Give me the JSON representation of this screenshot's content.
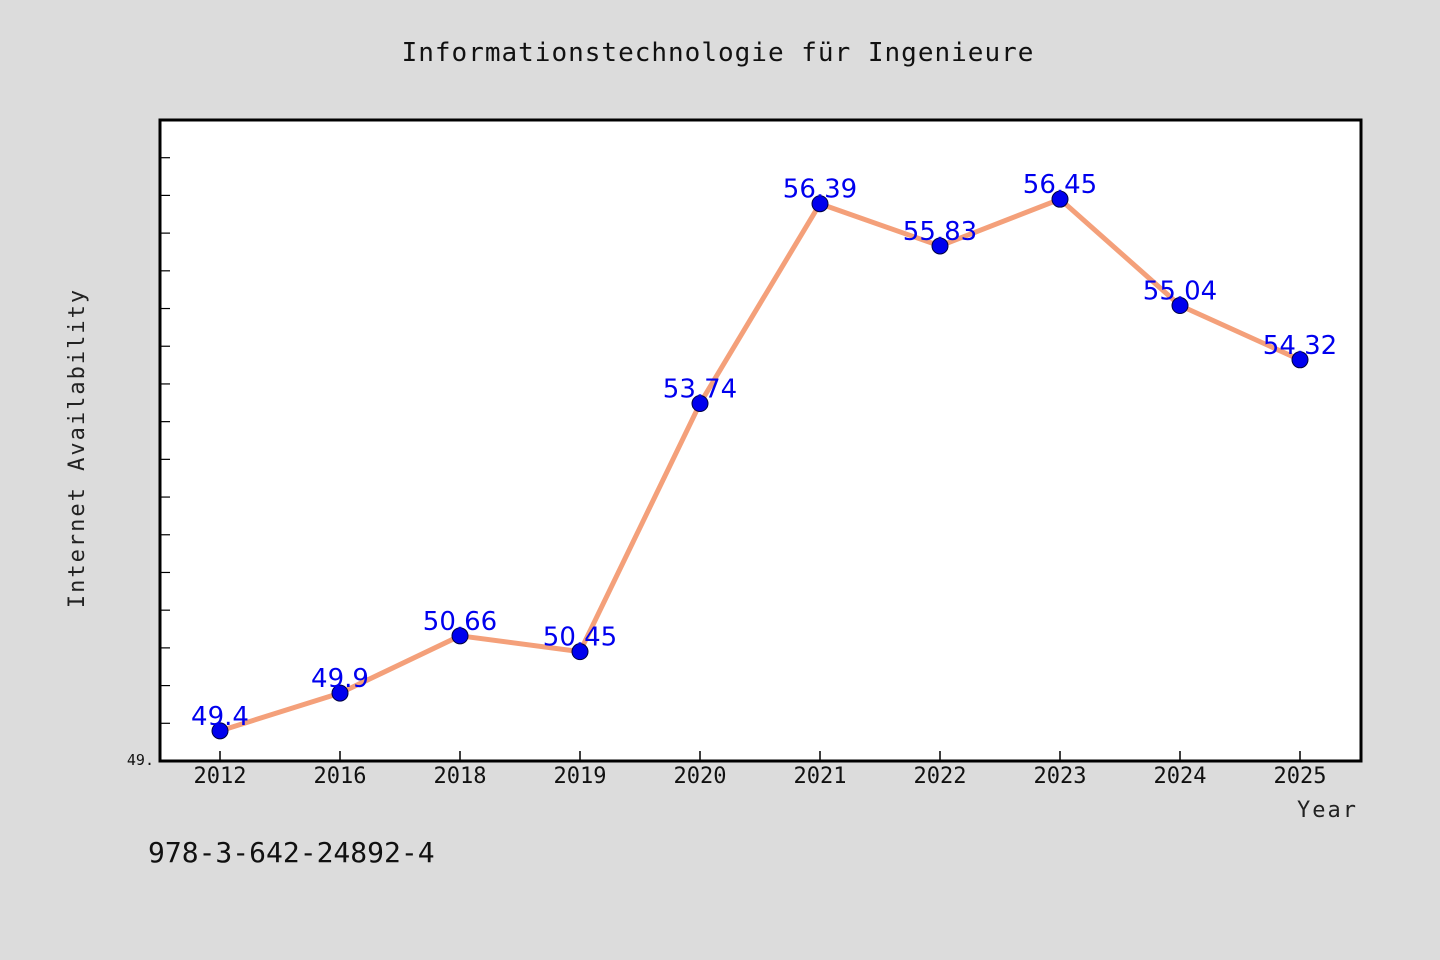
{
  "footer_text": "978-3-642-24892-4",
  "chart_data": {
    "type": "line",
    "title": "Informationstechnologie für Ingenieure",
    "xlabel": "Year",
    "ylabel": "Internet Availability",
    "categories": [
      "2012",
      "2016",
      "2018",
      "2019",
      "2020",
      "2021",
      "2022",
      "2023",
      "2024",
      "2025"
    ],
    "series": [
      {
        "values": [
          49.4,
          49.9,
          50.66,
          50.45,
          53.74,
          56.39,
          55.83,
          56.45,
          55.04,
          54.32
        ],
        "data_labels": [
          "49.4",
          "49.9",
          "50.66",
          "50.45",
          "53.74",
          "56.39",
          "55.83",
          "56.45",
          "55.04",
          "54.32"
        ],
        "line_color": "#f4a07a",
        "marker_color": "#0000ee"
      }
    ],
    "y_tick_labels": [
      "49."
    ],
    "ylim": [
      49.0,
      57.5
    ],
    "grid": false,
    "legend": "none"
  }
}
